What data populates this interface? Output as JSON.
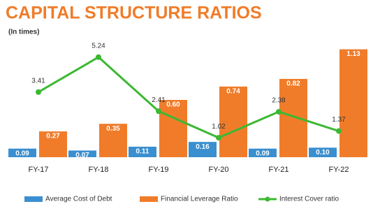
{
  "chart_data": {
    "type": "bar-line",
    "title": "CAPITAL STRUCTURE RATIOS",
    "subtitle": "(In times)",
    "categories": [
      "FY-17",
      "FY-18",
      "FY-19",
      "FY-20",
      "FY-21",
      "FY-22"
    ],
    "ylim": [
      0,
      1.2
    ],
    "y2lim": [
      0,
      6
    ],
    "series": [
      {
        "name": "Average Cost of Debt",
        "type": "bar",
        "color": "#3a8fd0",
        "values": [
          0.09,
          0.07,
          0.11,
          0.16,
          0.09,
          0.1
        ],
        "value_labels": [
          "0.09",
          "0.07",
          "0.11",
          "0.16",
          "0.09",
          "0.10"
        ]
      },
      {
        "name": "Financial Leverage Ratio",
        "type": "bar",
        "color": "#f07c2a",
        "values": [
          0.27,
          0.35,
          0.6,
          0.74,
          0.82,
          1.13
        ],
        "value_labels": [
          "0.27",
          "0.35",
          "0.60",
          "0.74",
          "0.82",
          "1.13"
        ]
      },
      {
        "name": "Interest Cover ratio",
        "type": "line",
        "axis": "y2",
        "color": "#3cb832",
        "values": [
          3.41,
          5.24,
          2.41,
          1.02,
          2.38,
          1.37
        ],
        "value_labels": [
          "3.41",
          "5.24",
          "2.41",
          "1.02",
          "2.38",
          "1.37"
        ]
      }
    ]
  }
}
